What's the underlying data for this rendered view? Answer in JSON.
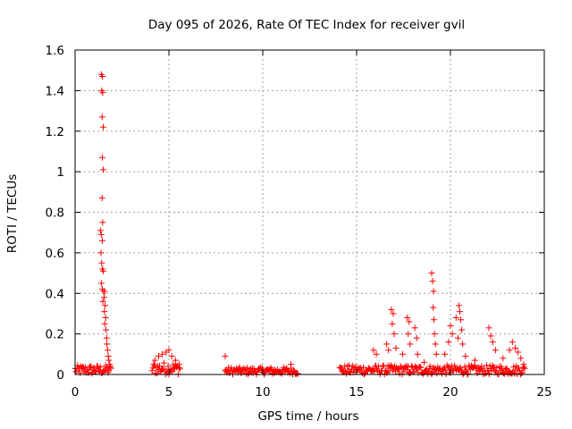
{
  "chart_data": {
    "type": "scatter",
    "title": "Day 095 of 2026, Rate Of TEC Index for receiver gvil",
    "xlabel": "GPS time / hours",
    "ylabel": "ROTI / TECUs",
    "xlim": [
      0,
      25
    ],
    "ylim": [
      0,
      1.6
    ],
    "grid": true,
    "marker": "+",
    "colors": {
      "series": "#ff0000",
      "grid": "#a0a0a0",
      "frame": "#000000"
    },
    "x_ticks": [
      0,
      5,
      10,
      15,
      20,
      25
    ],
    "x_tick_labels": [
      "0",
      "5",
      "10",
      "15",
      "20",
      "25"
    ],
    "y_ticks": [
      0,
      0.2,
      0.4,
      0.6,
      0.8,
      1.0,
      1.2,
      1.4,
      1.6
    ],
    "y_tick_labels": [
      "0",
      "0.2",
      "0.4",
      "0.6",
      "0.8",
      "1",
      "1.2",
      "1.4",
      "1.6"
    ],
    "series": [
      {
        "name": "ROTI",
        "points": [
          [
            1.4,
            1.48
          ],
          [
            1.45,
            1.47
          ],
          [
            1.42,
            1.4
          ],
          [
            1.47,
            1.39
          ],
          [
            1.44,
            1.27
          ],
          [
            1.5,
            1.22
          ],
          [
            1.45,
            1.07
          ],
          [
            1.5,
            1.01
          ],
          [
            1.44,
            0.87
          ],
          [
            1.47,
            0.75
          ],
          [
            1.35,
            0.71
          ],
          [
            1.4,
            0.69
          ],
          [
            1.45,
            0.66
          ],
          [
            1.38,
            0.6
          ],
          [
            1.42,
            0.55
          ],
          [
            1.46,
            0.52
          ],
          [
            1.5,
            0.51
          ],
          [
            1.4,
            0.45
          ],
          [
            1.45,
            0.42
          ],
          [
            1.52,
            0.41
          ],
          [
            1.58,
            0.41
          ],
          [
            1.55,
            0.38
          ],
          [
            1.48,
            0.36
          ],
          [
            1.6,
            0.34
          ],
          [
            1.56,
            0.31
          ],
          [
            1.63,
            0.28
          ],
          [
            1.58,
            0.25
          ],
          [
            1.65,
            0.22
          ],
          [
            1.68,
            0.18
          ],
          [
            1.7,
            0.15
          ],
          [
            1.74,
            0.12
          ],
          [
            1.77,
            0.09
          ],
          [
            1.8,
            0.07
          ],
          [
            1.85,
            0.05
          ],
          [
            1.9,
            0.03
          ],
          [
            4.25,
            0.07
          ],
          [
            4.45,
            0.09
          ],
          [
            4.65,
            0.1
          ],
          [
            4.85,
            0.11
          ],
          [
            5.0,
            0.12
          ],
          [
            5.15,
            0.09
          ],
          [
            5.35,
            0.07
          ],
          [
            5.55,
            0.05
          ],
          [
            8.0,
            0.09
          ],
          [
            11.5,
            0.05
          ],
          [
            15.9,
            0.12
          ],
          [
            16.05,
            0.1
          ],
          [
            16.6,
            0.15
          ],
          [
            16.7,
            0.12
          ],
          [
            16.85,
            0.32
          ],
          [
            16.95,
            0.3
          ],
          [
            16.9,
            0.25
          ],
          [
            17.0,
            0.2
          ],
          [
            17.1,
            0.13
          ],
          [
            17.45,
            0.1
          ],
          [
            17.7,
            0.28
          ],
          [
            17.8,
            0.26
          ],
          [
            17.75,
            0.2
          ],
          [
            17.85,
            0.15
          ],
          [
            18.1,
            0.23
          ],
          [
            18.2,
            0.18
          ],
          [
            18.25,
            0.1
          ],
          [
            18.6,
            0.06
          ],
          [
            19.0,
            0.5
          ],
          [
            19.05,
            0.46
          ],
          [
            19.1,
            0.41
          ],
          [
            19.08,
            0.33
          ],
          [
            19.12,
            0.27
          ],
          [
            19.15,
            0.2
          ],
          [
            19.2,
            0.15
          ],
          [
            19.25,
            0.1
          ],
          [
            19.7,
            0.1
          ],
          [
            19.9,
            0.16
          ],
          [
            20.0,
            0.24
          ],
          [
            20.1,
            0.2
          ],
          [
            20.3,
            0.28
          ],
          [
            20.45,
            0.34
          ],
          [
            20.5,
            0.31
          ],
          [
            20.55,
            0.27
          ],
          [
            20.6,
            0.22
          ],
          [
            20.4,
            0.18
          ],
          [
            20.65,
            0.15
          ],
          [
            20.8,
            0.09
          ],
          [
            21.3,
            0.07
          ],
          [
            22.05,
            0.23
          ],
          [
            22.15,
            0.19
          ],
          [
            22.25,
            0.16
          ],
          [
            22.4,
            0.12
          ],
          [
            22.8,
            0.08
          ],
          [
            23.15,
            0.12
          ],
          [
            23.3,
            0.16
          ],
          [
            23.45,
            0.13
          ],
          [
            23.6,
            0.11
          ],
          [
            23.75,
            0.08
          ],
          [
            23.9,
            0.05
          ]
        ],
        "baseline_segments": [
          {
            "x": [
              0.0,
              1.9
            ],
            "y_min": 0.0,
            "y_max": 0.045
          },
          {
            "x": [
              4.1,
              5.6
            ],
            "y_min": 0.0,
            "y_max": 0.06
          },
          {
            "x": [
              8.0,
              11.9
            ],
            "y_min": 0.0,
            "y_max": 0.035
          },
          {
            "x": [
              14.1,
              24.0
            ],
            "y_min": 0.0,
            "y_max": 0.045
          }
        ]
      }
    ]
  }
}
